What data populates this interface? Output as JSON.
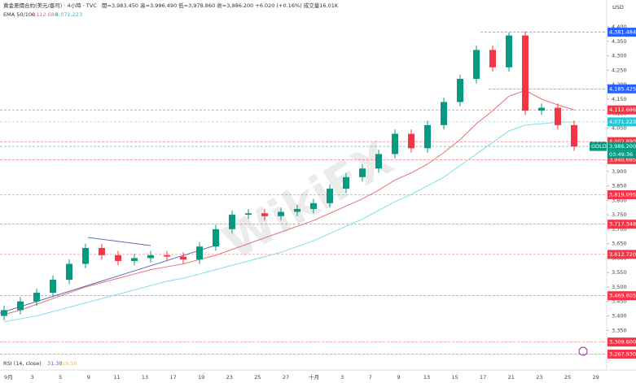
{
  "chart_data": {
    "type": "candlestick",
    "title": "黄金差價合約(美元/盎司) · 4小時 · TVC",
    "ohlc_text": "開=3,983.450 高=3,996.490 低=3,978.860 收=3,986.200 +6.020 (+0.16%) 成交量16.01K",
    "currency": "USD",
    "ema_label": "EMA 50/100",
    "ema_values": [
      "4,112.686",
      "4,071.223"
    ],
    "rsi_label": "RSI (14, close)",
    "rsi_values": [
      "31.38",
      "19.59"
    ],
    "watermark": "WikiFX",
    "up_color": "#089981",
    "down_color": "#f23645",
    "open": [
      3400,
      3420,
      3450,
      3480,
      3525,
      3580,
      3635,
      3610,
      3590,
      3600,
      3610,
      3605,
      3595,
      3640,
      3700,
      3750,
      3755,
      3745,
      3760,
      3770,
      3790,
      3840,
      3880,
      3910,
      3960,
      4030,
      3980,
      4060,
      4140,
      4220,
      4320,
      4260,
      4370,
      4110,
      4120,
      4060
    ],
    "high": [
      3435,
      3465,
      3495,
      3540,
      3595,
      3650,
      3650,
      3625,
      3615,
      3625,
      3625,
      3620,
      3655,
      3715,
      3765,
      3770,
      3770,
      3775,
      3785,
      3805,
      3855,
      3895,
      3925,
      3975,
      4045,
      4045,
      4075,
      4155,
      4235,
      4335,
      4335,
      4380,
      4385,
      4135,
      4135,
      4075
    ],
    "low": [
      3385,
      3405,
      3435,
      3465,
      3510,
      3565,
      3595,
      3575,
      3575,
      3585,
      3590,
      3580,
      3580,
      3625,
      3685,
      3735,
      3730,
      3730,
      3745,
      3755,
      3775,
      3825,
      3865,
      3895,
      3945,
      3965,
      3965,
      4045,
      4125,
      4205,
      4245,
      4245,
      4095,
      4095,
      4045,
      3971
    ],
    "close": [
      3420,
      3450,
      3480,
      3525,
      3580,
      3635,
      3610,
      3590,
      3600,
      3610,
      3605,
      3595,
      3640,
      3700,
      3750,
      3755,
      3745,
      3760,
      3770,
      3790,
      3840,
      3880,
      3910,
      3960,
      4030,
      3980,
      4060,
      4140,
      4220,
      4320,
      4260,
      4370,
      4110,
      4120,
      4060,
      3986
    ],
    "series": [
      {
        "name": "EMA 50",
        "color": "#e57373",
        "values": [
          3405,
          3420,
          3440,
          3460,
          3480,
          3500,
          3515,
          3530,
          3545,
          3560,
          3570,
          3580,
          3595,
          3610,
          3630,
          3650,
          3670,
          3690,
          3710,
          3730,
          3755,
          3780,
          3805,
          3835,
          3870,
          3895,
          3925,
          3965,
          4010,
          4065,
          4110,
          4160,
          4180,
          4150,
          4130,
          4112.686
        ]
      },
      {
        "name": "EMA 100",
        "color": "#80deea",
        "values": [
          3380,
          3390,
          3400,
          3415,
          3430,
          3445,
          3460,
          3475,
          3490,
          3505,
          3520,
          3530,
          3545,
          3560,
          3575,
          3590,
          3605,
          3620,
          3640,
          3660,
          3685,
          3710,
          3735,
          3765,
          3795,
          3820,
          3850,
          3880,
          3920,
          3960,
          4000,
          4040,
          4060,
          4065,
          4070,
          4071.223
        ]
      }
    ],
    "x_labels": [
      "9月",
      "3",
      "5",
      "9",
      "11",
      "13",
      "17",
      "19",
      "23",
      "25",
      "27",
      "十月",
      "3",
      "7",
      "9",
      "13",
      "15",
      "17",
      "21",
      "23",
      "25",
      "29"
    ],
    "ylim": [
      3250,
      4420
    ],
    "yticks": [
      {
        "value": 3300,
        "label": "3,300"
      },
      {
        "value": 3350,
        "label": "3,350"
      },
      {
        "value": 3400,
        "label": "3,400"
      },
      {
        "value": 3450,
        "label": "3,450"
      },
      {
        "value": 3500,
        "label": "3,500"
      },
      {
        "value": 3550,
        "label": "3,550"
      },
      {
        "value": 3600,
        "label": "3,600"
      },
      {
        "value": 3650,
        "label": "3,650"
      },
      {
        "value": 3700,
        "label": "3,700"
      },
      {
        "value": 3750,
        "label": "3,750"
      },
      {
        "value": 3800,
        "label": "3,800"
      },
      {
        "value": 3850,
        "label": "3,850"
      },
      {
        "value": 3900,
        "label": "3,900"
      },
      {
        "value": 3950,
        "label": "3,950"
      },
      {
        "value": 4000,
        "label": "4,000"
      },
      {
        "value": 4050,
        "label": "4,050"
      },
      {
        "value": 4100,
        "label": "4,100"
      },
      {
        "value": 4150,
        "label": "4,150"
      },
      {
        "value": 4200,
        "label": "4,200"
      },
      {
        "value": 4250,
        "label": "4,250"
      },
      {
        "value": 4300,
        "label": "4,300"
      },
      {
        "value": 4350,
        "label": "4,350"
      },
      {
        "value": 4400,
        "label": "4,400"
      }
    ],
    "price_labels": [
      {
        "value": 4381.484,
        "label": "4,381.484",
        "color": "#2962ff"
      },
      {
        "value": 4185.425,
        "label": "4,185.425",
        "color": "#2962ff"
      },
      {
        "value": 4112.686,
        "label": "4,112.686",
        "color": "#f23645"
      },
      {
        "value": 4071.223,
        "label": "4,071.223",
        "color": "#26c6da"
      },
      {
        "value": 4002.89,
        "label": "4,002.890",
        "color": "#f23645"
      },
      {
        "value": 3986.2,
        "label": "3,986.200",
        "color": "#089981"
      },
      {
        "value": 3940.685,
        "label": "3,940.685",
        "color": "#f23645"
      },
      {
        "value": 3819.095,
        "label": "3,819.095",
        "color": "#f23645"
      },
      {
        "value": 3717.348,
        "label": "3,717.348",
        "color": "#f23645"
      },
      {
        "value": 3612.72,
        "label": "3,612.720",
        "color": "#f23645"
      },
      {
        "value": 3469.805,
        "label": "3,469.805",
        "color": "#f23645"
      },
      {
        "value": 3309.6,
        "label": "3,309.600",
        "color": "#f23645"
      },
      {
        "value": 3267.93,
        "label": "3,267.930",
        "color": "#f23645"
      }
    ],
    "symbol": "GOLD",
    "countdown": "03:49:36"
  }
}
